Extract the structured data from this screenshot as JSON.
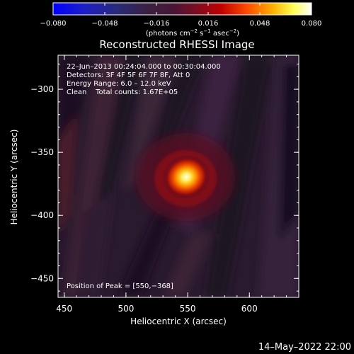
{
  "colorbar": {
    "ticks": [
      "−0.080",
      "−0.048",
      "−0.016",
      "0.016",
      "0.048",
      "0.080"
    ],
    "units_prefix": "(photons cm",
    "units_exp1": "−2",
    "units_mid": " s",
    "units_exp2": "−1",
    "units_mid2": " asec",
    "units_exp3": "−2",
    "units_suffix": ")",
    "range": [
      -0.08,
      0.08
    ]
  },
  "plot": {
    "title": "Reconstructed RHESSI Image",
    "xlabel": "Heliocentric X (arcsec)",
    "ylabel": "Heliocentric Y (arcsec)",
    "xticks": [
      "450",
      "500",
      "550",
      "600"
    ],
    "yticks": [
      "−300",
      "−350",
      "−400",
      "−450"
    ],
    "xlim": [
      445,
      640
    ],
    "ylim": [
      -465,
      -273
    ],
    "info": [
      "22–Jun–2013 00:24:04.000 to 00:30:04.000",
      "Detectors: 3F 4F 5F 6F 7F 8F, Att 0",
      "Energy Range: 6.0 – 12.0 keV",
      "Clean    Total counts: 1.67E+05"
    ],
    "peak_label": "Position of Peak = [550,−368]",
    "peak": [
      550,
      -368
    ]
  },
  "footer": {
    "timestamp": "14–May–2022 22:00"
  }
}
